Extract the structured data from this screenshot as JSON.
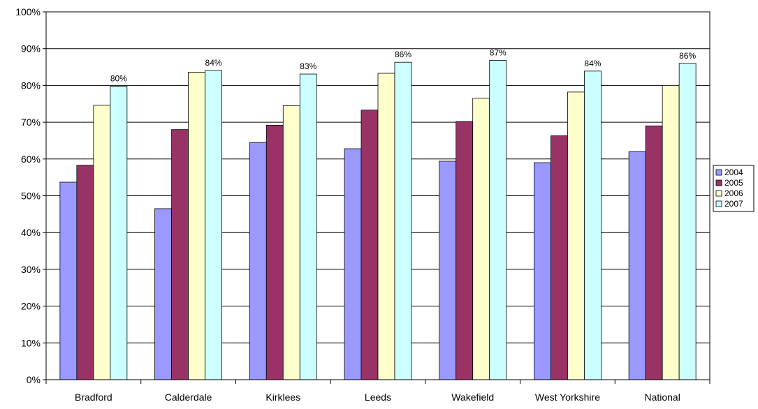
{
  "chart_data": {
    "type": "bar",
    "categories": [
      "Bradford",
      "Calderdale",
      "Kirklees",
      "Leeds",
      "Wakefield",
      "West Yorkshire",
      "National"
    ],
    "series": [
      {
        "name": "2004",
        "color": "#9999FF",
        "values": [
          53.7,
          46.5,
          64.5,
          62.8,
          59.4,
          59.0,
          62.0
        ]
      },
      {
        "name": "2005",
        "color": "#993366",
        "values": [
          58.3,
          68.0,
          69.2,
          73.3,
          70.2,
          66.3,
          69.0
        ]
      },
      {
        "name": "2006",
        "color": "#FFFFCC",
        "values": [
          74.6,
          83.6,
          74.5,
          83.3,
          76.5,
          78.2,
          80.0
        ]
      },
      {
        "name": "2007",
        "color": "#CCFFFF",
        "values": [
          79.8,
          84.1,
          83.1,
          86.3,
          86.8,
          83.9,
          86.0
        ]
      }
    ],
    "data_labels_2007": [
      "80%",
      "84%",
      "83%",
      "86%",
      "87%",
      "84%",
      "86%"
    ],
    "y_ticks": [
      "0%",
      "10%",
      "20%",
      "30%",
      "40%",
      "50%",
      "60%",
      "70%",
      "80%",
      "90%",
      "100%"
    ],
    "ylim": [
      0,
      100
    ],
    "grid": true,
    "legend": "right"
  }
}
